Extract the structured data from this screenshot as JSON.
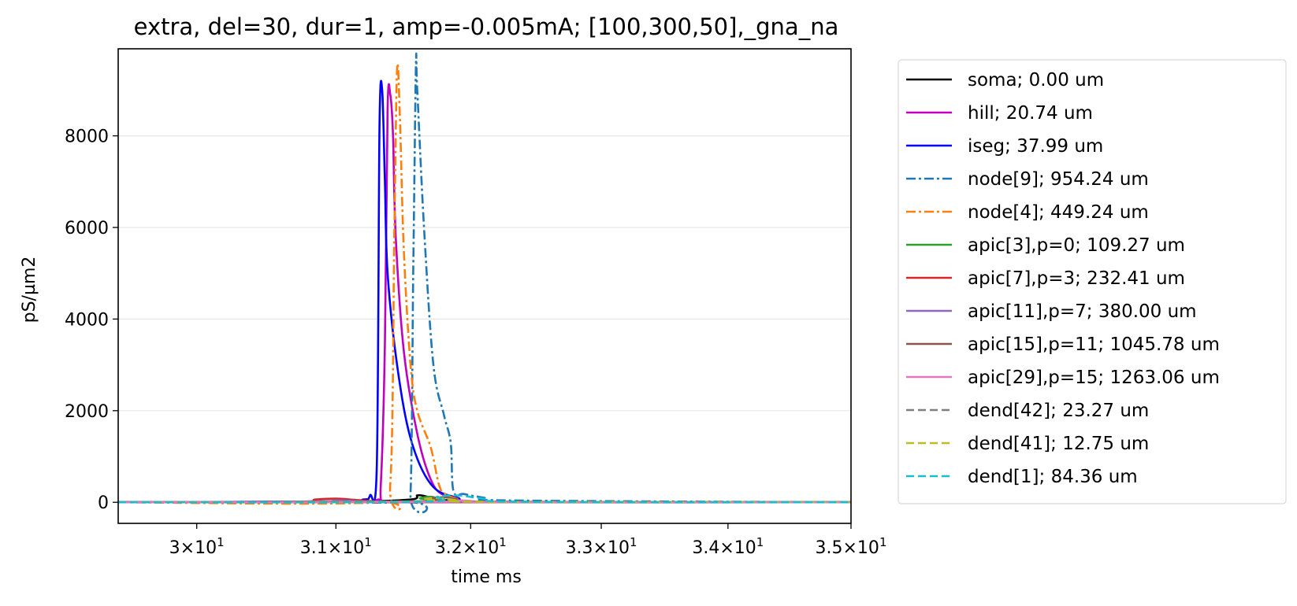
{
  "chart_data": {
    "type": "line",
    "title": "extra, del=30, dur=1, amp=-0.005mA; [100,300,50],_gna_na",
    "xlabel": "time ms",
    "ylabel": "pS/µm2",
    "xscale": "log",
    "xlim": [
      29.45,
      35.0
    ],
    "ylim": [
      -460,
      9900
    ],
    "xticks": [
      {
        "value": 30,
        "label_mantissa": "3",
        "label_exp": "1"
      },
      {
        "value": 31,
        "label_mantissa": "3.1",
        "label_exp": "1"
      },
      {
        "value": 32,
        "label_mantissa": "3.2",
        "label_exp": "1"
      },
      {
        "value": 33,
        "label_mantissa": "3.3",
        "label_exp": "1"
      },
      {
        "value": 34,
        "label_mantissa": "3.4",
        "label_exp": "1"
      },
      {
        "value": 35,
        "label_mantissa": "3.5",
        "label_exp": "1"
      }
    ],
    "yticks": [
      0,
      2000,
      4000,
      6000,
      8000
    ],
    "ygrid": true,
    "legend_position": "outside-right",
    "series": [
      {
        "name": "soma; 0.00 um",
        "color": "#000000",
        "dash": "solid",
        "x": [
          29.45,
          30.9,
          31.0,
          31.1,
          31.55,
          31.6,
          31.65,
          31.7,
          31.8,
          32.0,
          32.3,
          35.0
        ],
        "y": [
          0,
          5,
          10,
          5,
          60,
          150,
          140,
          100,
          50,
          10,
          0,
          0
        ]
      },
      {
        "name": "hill; 20.74 um",
        "color": "#bf00bf",
        "dash": "solid",
        "x": [
          29.45,
          31.0,
          31.3,
          31.33,
          31.36,
          31.38,
          31.4,
          31.42,
          31.44,
          31.5,
          31.6,
          31.7,
          31.8,
          32.0,
          32.4,
          35.0
        ],
        "y": [
          0,
          20,
          50,
          400,
          3500,
          8600,
          8900,
          8000,
          5800,
          3300,
          1500,
          500,
          150,
          20,
          0,
          0
        ]
      },
      {
        "name": "iseg; 37.99 um",
        "color": "#0000ff",
        "dash": "solid",
        "x": [
          29.45,
          31.0,
          31.2,
          31.25,
          31.3,
          31.32,
          31.34,
          31.36,
          31.38,
          31.45,
          31.55,
          31.7,
          31.9,
          32.2,
          35.0
        ],
        "y": [
          0,
          20,
          60,
          150,
          800,
          8200,
          9000,
          7000,
          5000,
          3000,
          1400,
          400,
          100,
          10,
          0
        ]
      },
      {
        "name": "node[9]; 954.24 um",
        "color": "#1f77b4",
        "dash": "dashdot",
        "x": [
          29.45,
          31.5,
          31.55,
          31.57,
          31.59,
          31.6,
          31.65,
          31.72,
          31.8,
          31.85,
          31.87,
          31.95,
          32.1,
          32.3,
          35.0
        ],
        "y": [
          0,
          0,
          200,
          5000,
          9500,
          9000,
          6000,
          3000,
          1900,
          1300,
          250,
          180,
          100,
          40,
          0
        ]
      },
      {
        "name": "node[4]; 449.24 um",
        "color": "#ff7f0e",
        "dash": "dashdot",
        "x": [
          29.45,
          31.3,
          31.4,
          31.43,
          31.45,
          31.47,
          31.5,
          31.55,
          31.6,
          31.7,
          31.76,
          31.8,
          31.9,
          32.1,
          35.0
        ],
        "y": [
          0,
          0,
          400,
          6000,
          9450,
          8500,
          5500,
          3000,
          2000,
          1200,
          400,
          200,
          80,
          10,
          0
        ]
      },
      {
        "name": "apic[3],p=0; 109.27 um",
        "color": "#2ca02c",
        "dash": "solid",
        "x": [
          29.45,
          31.55,
          31.62,
          31.7,
          31.8,
          32.0,
          35.0
        ],
        "y": [
          0,
          20,
          90,
          120,
          60,
          10,
          0
        ]
      },
      {
        "name": "apic[7],p=3; 232.41 um",
        "color": "#d62728",
        "dash": "solid",
        "x": [
          29.45,
          30.7,
          30.85,
          31.0,
          31.15,
          31.3,
          31.5,
          35.0
        ],
        "y": [
          0,
          10,
          60,
          80,
          50,
          20,
          0,
          0
        ]
      },
      {
        "name": "apic[11],p=7; 380.00 um",
        "color": "#9467bd",
        "dash": "solid",
        "x": [
          29.45,
          30.8,
          31.0,
          31.2,
          31.4,
          35.0
        ],
        "y": [
          0,
          15,
          40,
          20,
          5,
          0
        ]
      },
      {
        "name": "apic[15],p=11; 1045.78 um",
        "color": "#8c564b",
        "dash": "solid",
        "x": [
          29.45,
          31.6,
          31.7,
          31.8,
          31.9,
          32.1,
          35.0
        ],
        "y": [
          0,
          20,
          90,
          110,
          70,
          10,
          0
        ]
      },
      {
        "name": "apic[29],p=15; 1263.06 um",
        "color": "#e377c2",
        "dash": "solid",
        "x": [
          29.45,
          31.7,
          31.85,
          32.0,
          32.2,
          35.0
        ],
        "y": [
          0,
          10,
          40,
          30,
          5,
          0
        ]
      },
      {
        "name": "dend[42]; 23.27 um",
        "color": "#7f7f7f",
        "dash": "dashed",
        "x": [
          29.45,
          31.55,
          31.65,
          31.75,
          31.9,
          32.1,
          35.0
        ],
        "y": [
          0,
          10,
          80,
          100,
          50,
          10,
          0
        ]
      },
      {
        "name": "dend[41]; 12.75 um",
        "color": "#bcbd22",
        "dash": "dashed",
        "x": [
          29.45,
          31.55,
          31.65,
          31.75,
          31.9,
          32.1,
          35.0
        ],
        "y": [
          0,
          10,
          70,
          90,
          45,
          10,
          0
        ]
      },
      {
        "name": "dend[1]; 84.36 um",
        "color": "#17becf",
        "dash": "dashed",
        "x": [
          29.45,
          31.6,
          31.75,
          31.9,
          32.1,
          32.4,
          35.0
        ],
        "y": [
          0,
          10,
          120,
          150,
          80,
          10,
          0
        ]
      }
    ]
  }
}
